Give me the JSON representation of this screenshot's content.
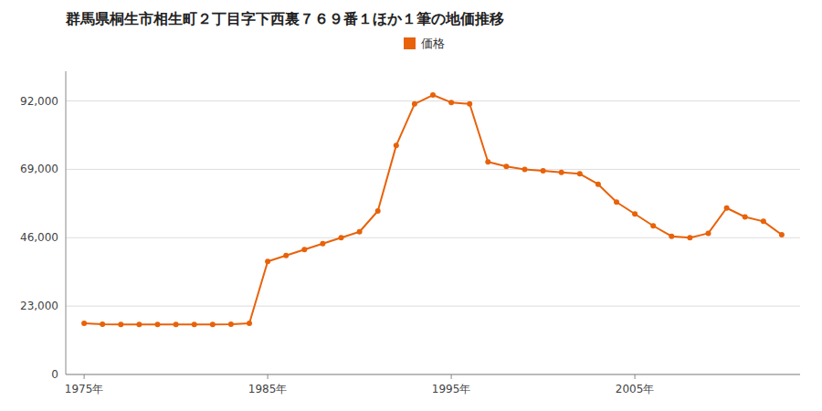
{
  "chart_data": {
    "type": "line",
    "title": "群馬県桐生市相生町２丁目字下西裏７６９番１ほか１筆の地価推移",
    "x": [
      1975,
      1976,
      1977,
      1978,
      1979,
      1980,
      1981,
      1982,
      1983,
      1984,
      1985,
      1986,
      1987,
      1988,
      1989,
      1990,
      1991,
      1992,
      1993,
      1994,
      1995,
      1996,
      1997,
      1998,
      1999,
      2000,
      2001,
      2002,
      2003,
      2004,
      2005,
      2006,
      2007,
      2008,
      2009,
      2010,
      2011,
      2012,
      2013
    ],
    "series": [
      {
        "name": "価格",
        "color": "#E8620A",
        "marker": "circle",
        "line_style": "solid",
        "values": [
          17200,
          16900,
          16800,
          16800,
          16800,
          16800,
          16800,
          16800,
          16900,
          17200,
          38000,
          40000,
          42000,
          44000,
          46000,
          48000,
          55000,
          77000,
          91000,
          94000,
          91500,
          91000,
          71500,
          70000,
          69000,
          68500,
          68000,
          67500,
          64000,
          58000,
          54000,
          50000,
          46500,
          46000,
          47500,
          56000,
          53000,
          51500,
          47000
        ]
      }
    ],
    "xlim": [
      1974,
      2014
    ],
    "xticks": [
      {
        "value": 1975,
        "label": "1975年"
      },
      {
        "value": 1985,
        "label": "1985年"
      },
      {
        "value": 1995,
        "label": "1995年"
      },
      {
        "value": 2005,
        "label": "2005年"
      }
    ],
    "ylim": [
      0,
      102000
    ],
    "yticks": [
      0,
      {
        "value": 23000,
        "label": "23,000"
      },
      {
        "value": 46000,
        "label": "46,000"
      },
      {
        "value": 69000,
        "label": "69,000"
      },
      {
        "value": 92000,
        "label": "92,000"
      }
    ],
    "grid": true,
    "legend": "top"
  }
}
